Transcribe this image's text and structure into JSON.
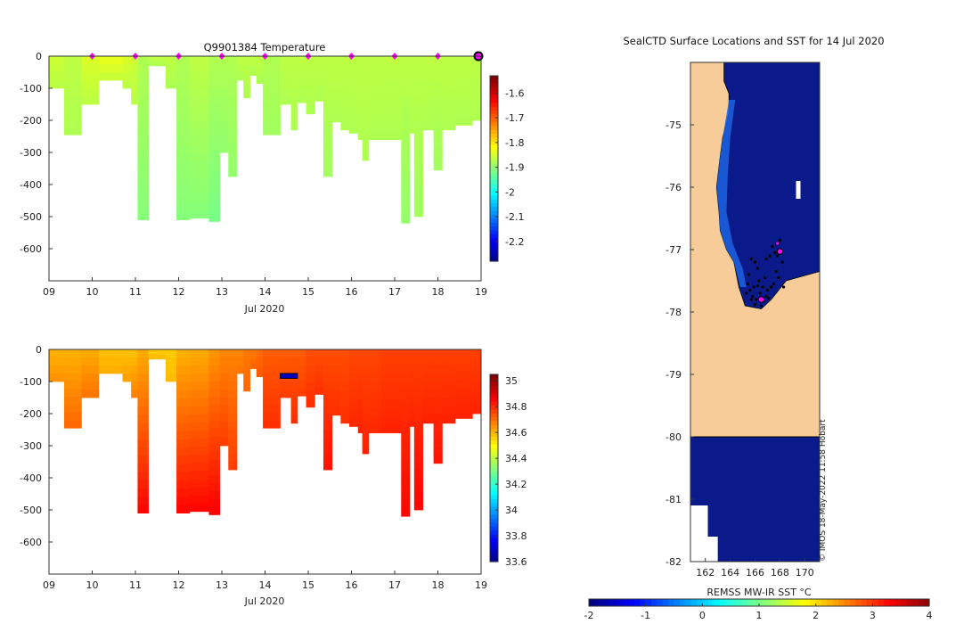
{
  "chart_data": [
    {
      "type": "heatmap",
      "title": "Q9901384  Temperature",
      "xlabel": "Jul 2020",
      "x_ticks": [
        "09",
        "10",
        "11",
        "12",
        "13",
        "14",
        "15",
        "16",
        "17",
        "18",
        "19"
      ],
      "x_range_days": [
        9,
        19
      ],
      "y_ticks": [
        "0",
        "-100",
        "-200",
        "-300",
        "-400",
        "-500",
        "-600"
      ],
      "y_range_m": [
        -700,
        0
      ],
      "colorbar": {
        "ticks": [
          "-1.6",
          "-1.7",
          "-1.8",
          "-1.9",
          "-2",
          "-2.1",
          "-2.2"
        ],
        "range": [
          -2.28,
          -1.53
        ]
      },
      "surface_marker_days": [
        10,
        11,
        12,
        13,
        14,
        15,
        16,
        17,
        18
      ],
      "highlight_day": 19,
      "profiles": [
        {
          "day": 9.0,
          "max_depth": 100,
          "values": [
            -1.85,
            -1.86
          ]
        },
        {
          "day": 9.35,
          "max_depth": 245,
          "values": [
            -1.86,
            -1.87
          ]
        },
        {
          "day": 9.75,
          "max_depth": 150,
          "values": [
            -1.84,
            -1.86
          ]
        },
        {
          "day": 10.15,
          "max_depth": 75,
          "values": [
            -1.83,
            -1.85
          ]
        },
        {
          "day": 10.7,
          "max_depth": 100,
          "values": [
            -1.84,
            -1.86
          ]
        },
        {
          "day": 10.9,
          "max_depth": 150,
          "values": [
            -1.85,
            -1.86
          ]
        },
        {
          "day": 11.05,
          "max_depth": 510,
          "values": [
            -1.87,
            -1.9
          ]
        },
        {
          "day": 11.3,
          "max_depth": 30,
          "values": [
            -1.86,
            -1.87
          ]
        },
        {
          "day": 11.7,
          "max_depth": 100,
          "values": [
            -1.86,
            -1.87
          ]
        },
        {
          "day": 11.95,
          "max_depth": 510,
          "values": [
            -1.87,
            -1.9
          ]
        },
        {
          "day": 12.25,
          "max_depth": 505,
          "values": [
            -1.86,
            -1.9
          ]
        },
        {
          "day": 12.7,
          "max_depth": 515,
          "values": [
            -1.87,
            -1.91
          ]
        },
        {
          "day": 12.95,
          "max_depth": 300,
          "values": [
            -1.87,
            -1.89
          ]
        },
        {
          "day": 13.15,
          "max_depth": 375,
          "values": [
            -1.87,
            -1.89
          ]
        },
        {
          "day": 13.35,
          "max_depth": 75,
          "values": [
            -1.86,
            -1.87
          ]
        },
        {
          "day": 13.5,
          "max_depth": 130,
          "values": [
            -1.86,
            -1.87
          ]
        },
        {
          "day": 13.65,
          "max_depth": 60,
          "values": [
            -1.86,
            -1.87
          ]
        },
        {
          "day": 13.8,
          "max_depth": 85,
          "values": [
            -1.86,
            -1.87
          ]
        },
        {
          "day": 13.95,
          "max_depth": 245,
          "values": [
            -1.87,
            -1.88
          ]
        },
        {
          "day": 14.35,
          "max_depth": 150,
          "values": [
            -1.86,
            -1.87
          ]
        },
        {
          "day": 14.6,
          "max_depth": 230,
          "values": [
            -1.86,
            -1.87
          ]
        },
        {
          "day": 14.75,
          "max_depth": 145,
          "values": [
            -1.86,
            -1.87
          ]
        },
        {
          "day": 14.95,
          "max_depth": 180,
          "values": [
            -1.86,
            -1.87
          ]
        },
        {
          "day": 15.15,
          "max_depth": 140,
          "values": [
            -1.86,
            -1.87
          ]
        },
        {
          "day": 15.35,
          "max_depth": 375,
          "values": [
            -1.86,
            -1.88
          ]
        },
        {
          "day": 15.55,
          "max_depth": 205,
          "values": [
            -1.86,
            -1.87
          ]
        },
        {
          "day": 15.75,
          "max_depth": 230,
          "values": [
            -1.86,
            -1.87
          ]
        },
        {
          "day": 15.95,
          "max_depth": 240,
          "values": [
            -1.86,
            -1.87
          ]
        },
        {
          "day": 16.15,
          "max_depth": 260,
          "values": [
            -1.86,
            -1.87
          ]
        },
        {
          "day": 16.25,
          "max_depth": 325,
          "values": [
            -1.86,
            -1.87
          ]
        },
        {
          "day": 16.4,
          "max_depth": 260,
          "values": [
            -1.86,
            -1.87
          ]
        },
        {
          "day": 16.7,
          "max_depth": 260,
          "values": [
            -1.86,
            -1.87
          ]
        },
        {
          "day": 17.15,
          "max_depth": 520,
          "values": [
            -1.86,
            -1.89
          ]
        },
        {
          "day": 17.35,
          "max_depth": 240,
          "values": [
            -1.86,
            -1.87
          ]
        },
        {
          "day": 17.45,
          "max_depth": 500,
          "values": [
            -1.86,
            -1.88
          ]
        },
        {
          "day": 17.65,
          "max_depth": 230,
          "values": [
            -1.86,
            -1.87
          ]
        },
        {
          "day": 17.9,
          "max_depth": 355,
          "values": [
            -1.86,
            -1.88
          ]
        },
        {
          "day": 18.1,
          "max_depth": 230,
          "values": [
            -1.86,
            -1.87
          ]
        },
        {
          "day": 18.4,
          "max_depth": 215,
          "values": [
            -1.86,
            -1.87
          ]
        },
        {
          "day": 18.8,
          "max_depth": 200,
          "values": [
            -1.86,
            -1.87
          ]
        }
      ]
    },
    {
      "type": "heatmap",
      "title": "",
      "xlabel": "Jul 2020",
      "x_ticks": [
        "09",
        "10",
        "11",
        "12",
        "13",
        "14",
        "15",
        "16",
        "17",
        "18",
        "19"
      ],
      "x_range_days": [
        9,
        19
      ],
      "y_ticks": [
        "0",
        "-100",
        "-200",
        "-300",
        "-400",
        "-500",
        "-600"
      ],
      "y_range_m": [
        -700,
        0
      ],
      "colorbar": {
        "ticks": [
          "35",
          "34.8",
          "34.6",
          "34.4",
          "34.2",
          "34",
          "33.8",
          "33.6"
        ],
        "range": [
          33.6,
          35.05
        ]
      },
      "profiles": [
        {
          "day": 9.0,
          "values": [
            34.62,
            34.66
          ]
        },
        {
          "day": 9.35,
          "values": [
            34.62,
            34.72
          ]
        },
        {
          "day": 9.75,
          "values": [
            34.63,
            34.7
          ]
        },
        {
          "day": 10.15,
          "values": [
            34.6,
            34.62
          ]
        },
        {
          "day": 10.7,
          "values": [
            34.6,
            34.64
          ]
        },
        {
          "day": 10.9,
          "values": [
            34.6,
            34.68
          ]
        },
        {
          "day": 11.05,
          "values": [
            34.63,
            34.86
          ]
        },
        {
          "day": 11.3,
          "values": [
            34.58,
            34.6
          ]
        },
        {
          "day": 11.7,
          "values": [
            34.58,
            34.6
          ]
        },
        {
          "day": 11.95,
          "values": [
            34.62,
            34.86
          ]
        },
        {
          "day": 12.25,
          "values": [
            34.63,
            34.86
          ]
        },
        {
          "day": 12.7,
          "values": [
            34.66,
            34.87
          ]
        },
        {
          "day": 12.95,
          "values": [
            34.68,
            34.78
          ]
        },
        {
          "day": 13.15,
          "values": [
            34.68,
            34.78
          ]
        },
        {
          "day": 13.35,
          "values": [
            34.68,
            34.7
          ]
        },
        {
          "day": 13.5,
          "values": [
            34.7,
            34.72
          ]
        },
        {
          "day": 13.65,
          "values": [
            34.7,
            34.72
          ]
        },
        {
          "day": 13.8,
          "values": [
            34.72,
            34.74
          ]
        },
        {
          "day": 13.95,
          "values": [
            34.74,
            34.8
          ]
        },
        {
          "day": 14.35,
          "values": [
            34.74,
            34.78
          ]
        },
        {
          "day": 14.6,
          "values": [
            34.74,
            34.8
          ]
        },
        {
          "day": 14.75,
          "values": [
            34.74,
            34.78
          ]
        },
        {
          "day": 14.95,
          "values": [
            34.76,
            34.8
          ]
        },
        {
          "day": 15.15,
          "values": [
            34.76,
            34.8
          ]
        },
        {
          "day": 15.35,
          "values": [
            34.76,
            34.84
          ]
        },
        {
          "day": 15.55,
          "values": [
            34.76,
            34.8
          ]
        },
        {
          "day": 15.75,
          "values": [
            34.76,
            34.8
          ]
        },
        {
          "day": 15.95,
          "values": [
            34.77,
            34.81
          ]
        },
        {
          "day": 16.15,
          "values": [
            34.77,
            34.82
          ]
        },
        {
          "day": 16.25,
          "values": [
            34.77,
            34.82
          ]
        },
        {
          "day": 16.4,
          "values": [
            34.77,
            34.81
          ]
        },
        {
          "day": 16.7,
          "values": [
            34.78,
            34.82
          ]
        },
        {
          "day": 17.15,
          "values": [
            34.78,
            34.86
          ]
        },
        {
          "day": 17.35,
          "values": [
            34.78,
            34.82
          ]
        },
        {
          "day": 17.45,
          "values": [
            34.78,
            34.86
          ]
        },
        {
          "day": 17.65,
          "values": [
            34.78,
            34.82
          ]
        },
        {
          "day": 17.9,
          "values": [
            34.78,
            34.84
          ]
        },
        {
          "day": 18.1,
          "values": [
            34.78,
            34.82
          ]
        },
        {
          "day": 18.4,
          "values": [
            34.78,
            34.82
          ]
        },
        {
          "day": 18.8,
          "values": [
            34.78,
            34.82
          ]
        }
      ],
      "anomaly": {
        "day_range": [
          14.35,
          14.75
        ],
        "depth_range": [
          75,
          90
        ],
        "values": [
          33.7,
          33.9
        ]
      }
    },
    {
      "type": "heatmap",
      "title": "SealCTD Surface Locations and SST for 14 Jul 2020",
      "x_ticks": [
        "162",
        "164",
        "166",
        "168",
        "170"
      ],
      "y_ticks": [
        "-75",
        "-76",
        "-77",
        "-78",
        "-79",
        "-80",
        "-81",
        "-82"
      ],
      "lon_range": [
        160.8,
        171.2
      ],
      "lat_range": [
        -82,
        -74
      ],
      "ice_shelf_north_edge_lat": -80,
      "seal_positions": [
        {
          "lon": 168.0,
          "lat": -77.03
        },
        {
          "lon": 166.5,
          "lat": -77.8
        },
        {
          "lon": 167.8,
          "lat": -76.9
        }
      ],
      "colorbar": {
        "label": "REMSS MW-IR SST °C",
        "ticks": [
          "-2",
          "-1",
          "0",
          "1",
          "2",
          "3",
          "4"
        ],
        "range": [
          -2,
          4
        ]
      },
      "credit": "© IMOS 18-May-2022 11:58 Hobart"
    }
  ]
}
